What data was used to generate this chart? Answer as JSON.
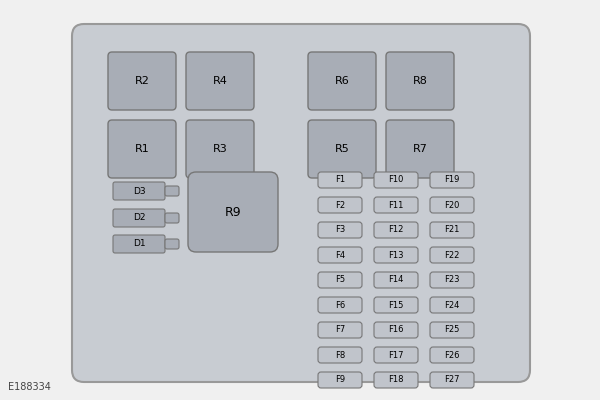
{
  "background_color": "#f0f0f0",
  "panel_color": "#c8ccd2",
  "panel_border_color": "#999999",
  "relay_color": "#a8adb6",
  "relay_border_color": "#777777",
  "fuse_color": "#c0c4cb",
  "fuse_border_color": "#777777",
  "diode_color": "#a8adb6",
  "diode_border_color": "#777777",
  "text_color": "#000000",
  "footnote_color": "#444444",
  "footnote": "E188334",
  "relays_top": [
    {
      "label": "R2",
      "col": 0,
      "row": 0
    },
    {
      "label": "R4",
      "col": 1,
      "row": 0
    },
    {
      "label": "R6",
      "col": 2,
      "row": 0
    },
    {
      "label": "R8",
      "col": 3,
      "row": 0
    },
    {
      "label": "R1",
      "col": 0,
      "row": 1
    },
    {
      "label": "R3",
      "col": 1,
      "row": 1
    },
    {
      "label": "R5",
      "col": 2,
      "row": 1
    },
    {
      "label": "R7",
      "col": 3,
      "row": 1
    }
  ],
  "fuses": [
    [
      "F1",
      "F10",
      "F19"
    ],
    [
      "F2",
      "F11",
      "F20"
    ],
    [
      "F3",
      "F12",
      "F21"
    ],
    [
      "F4",
      "F13",
      "F22"
    ],
    [
      "F5",
      "F14",
      "F23"
    ],
    [
      "F6",
      "F15",
      "F24"
    ],
    [
      "F7",
      "F16",
      "F25"
    ],
    [
      "F8",
      "F17",
      "F26"
    ],
    [
      "F9",
      "F18",
      "F27"
    ]
  ]
}
